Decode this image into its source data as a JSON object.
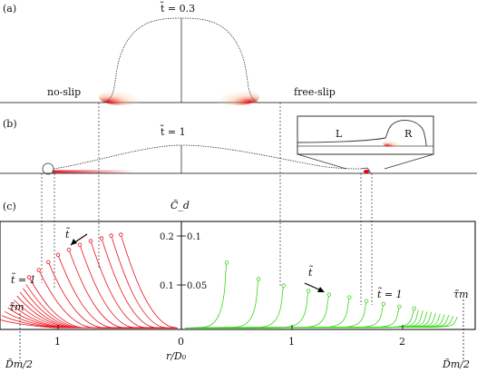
{
  "panels": {
    "a": {
      "label": "(a)",
      "time": "t̃ = 0.3",
      "left_bc": "no-slip",
      "right_bc": "free-slip"
    },
    "b": {
      "label": "(b)",
      "time": "t̃ = 1",
      "inset_left": "L",
      "inset_right": "R"
    },
    "c": {
      "label": "(c)",
      "ylabel": "C̃_d",
      "xlabel": "r/D₀",
      "left_yticks": [
        "0.2",
        "0.1"
      ],
      "right_yticks": [
        "0.1",
        "0.05"
      ],
      "xticks": [
        "1",
        "0",
        "1",
        "2"
      ],
      "annot_t_arrow_left": "t̃",
      "annot_t_arrow_right": "t̃",
      "annot_t1_left": "t̃ = 1",
      "annot_t1_right": "t̃ = 1",
      "annot_tau_left": "τ̃m",
      "annot_tau_right": "τ̃m",
      "annot_dm_left": "D̃m/2",
      "annot_dm_right": "D̃m/2"
    }
  },
  "colors": {
    "no_slip_curves": "#e8141c",
    "free_slip_curves": "#3ad51a",
    "axis": "#000000",
    "heat": "#e60012"
  },
  "chart_data": {
    "type": "line",
    "title": "",
    "xlabel": "r/D₀",
    "ylabel": "C̃_d",
    "left_panel": {
      "condition": "no-slip",
      "xlim": [
        1.5,
        0
      ],
      "ylim": [
        0,
        0.22
      ],
      "curve_count": 20,
      "series_note": "curves at increasing t̃ up to τ̃m",
      "start_points": [
        {
          "x": 0.5,
          "y": 0.205
        },
        {
          "x": 0.58,
          "y": 0.203
        },
        {
          "x": 0.66,
          "y": 0.197
        },
        {
          "x": 0.75,
          "y": 0.191
        },
        {
          "x": 0.84,
          "y": 0.183
        },
        {
          "x": 0.93,
          "y": 0.172
        },
        {
          "x": 1.02,
          "y": 0.161
        },
        {
          "x": 1.1,
          "y": 0.145
        },
        {
          "x": 1.18,
          "y": 0.128
        },
        {
          "x": 1.26,
          "y": 0.112
        }
      ]
    },
    "right_panel": {
      "condition": "free-slip",
      "xlim": [
        0,
        2.5
      ],
      "ylim": [
        0,
        0.11
      ],
      "curve_count": 20,
      "start_points": [
        {
          "x": 0.4,
          "y": 0.072
        },
        {
          "x": 0.68,
          "y": 0.054
        },
        {
          "x": 0.9,
          "y": 0.047
        },
        {
          "x": 1.12,
          "y": 0.041
        },
        {
          "x": 1.3,
          "y": 0.037
        },
        {
          "x": 1.48,
          "y": 0.034
        },
        {
          "x": 1.63,
          "y": 0.03
        },
        {
          "x": 1.78,
          "y": 0.027
        },
        {
          "x": 1.92,
          "y": 0.024
        },
        {
          "x": 2.05,
          "y": 0.022
        }
      ]
    }
  }
}
